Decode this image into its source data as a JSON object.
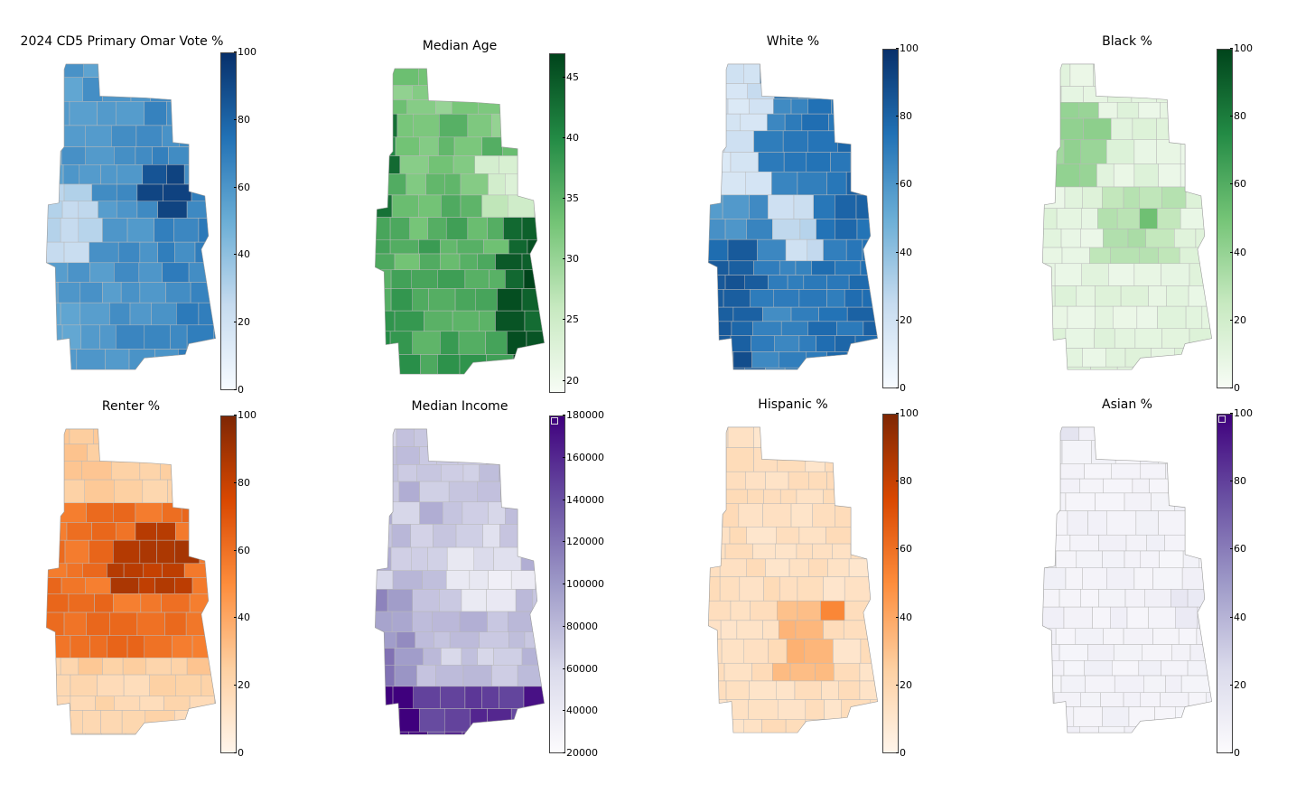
{
  "chart_data": [
    {
      "type": "choropleth",
      "title": "2024 CD5 Primary Omar Vote %",
      "scheme": "Blues",
      "colors": [
        "#f7fbff",
        "#c6dbef",
        "#6baed6",
        "#2171b5",
        "#08306b"
      ],
      "range": [
        0,
        100
      ],
      "ticks": [
        "0",
        "20",
        "40",
        "60",
        "80",
        "100"
      ],
      "legend": "right"
    },
    {
      "type": "choropleth",
      "title": "Median Age",
      "scheme": "Greens",
      "colors": [
        "#f7fcf5",
        "#c7e9c0",
        "#74c476",
        "#238b45",
        "#00441b"
      ],
      "range": [
        19,
        47
      ],
      "ticks": [
        "20",
        "25",
        "30",
        "35",
        "40",
        "45"
      ],
      "legend": "right"
    },
    {
      "type": "choropleth",
      "title": "White %",
      "scheme": "Blues",
      "colors": [
        "#f7fbff",
        "#c6dbef",
        "#6baed6",
        "#2171b5",
        "#08306b"
      ],
      "range": [
        0,
        100
      ],
      "ticks": [
        "0",
        "20",
        "40",
        "60",
        "80",
        "100"
      ],
      "legend": "right"
    },
    {
      "type": "choropleth",
      "title": "Black %",
      "scheme": "Greens",
      "colors": [
        "#f7fcf5",
        "#c7e9c0",
        "#74c476",
        "#238b45",
        "#00441b"
      ],
      "range": [
        0,
        100
      ],
      "ticks": [
        "0",
        "20",
        "40",
        "60",
        "80",
        "100"
      ],
      "legend": "right"
    },
    {
      "type": "choropleth",
      "title": "Renter %",
      "scheme": "Oranges",
      "colors": [
        "#fff5eb",
        "#fdd0a2",
        "#fd8d3c",
        "#d94801",
        "#7f2704"
      ],
      "range": [
        0,
        100
      ],
      "ticks": [
        "0",
        "20",
        "40",
        "60",
        "80",
        "100"
      ],
      "legend": "right"
    },
    {
      "type": "choropleth",
      "title": "Median Income",
      "scheme": "Purples",
      "colors": [
        "#fcfbfd",
        "#dadaeb",
        "#9e9ac8",
        "#6a51a3",
        "#3f007d"
      ],
      "range": [
        20000,
        180000
      ],
      "ticks": [
        "20000",
        "40000",
        "60000",
        "80000",
        "100000",
        "120000",
        "140000",
        "160000",
        "180000"
      ],
      "legend": "right"
    },
    {
      "type": "choropleth",
      "title": "Hispanic %",
      "scheme": "Oranges",
      "colors": [
        "#fff5eb",
        "#fdd0a2",
        "#fd8d3c",
        "#d94801",
        "#7f2704"
      ],
      "range": [
        0,
        100
      ],
      "ticks": [
        "0",
        "20",
        "40",
        "60",
        "80",
        "100"
      ],
      "legend": "right"
    },
    {
      "type": "choropleth",
      "title": "Asian %",
      "scheme": "Purples",
      "colors": [
        "#fcfbfd",
        "#dadaeb",
        "#9e9ac8",
        "#6a51a3",
        "#3f007d"
      ],
      "range": [
        0,
        100
      ],
      "ticks": [
        "0",
        "20",
        "40",
        "60",
        "80",
        "100"
      ],
      "legend": "right"
    }
  ]
}
